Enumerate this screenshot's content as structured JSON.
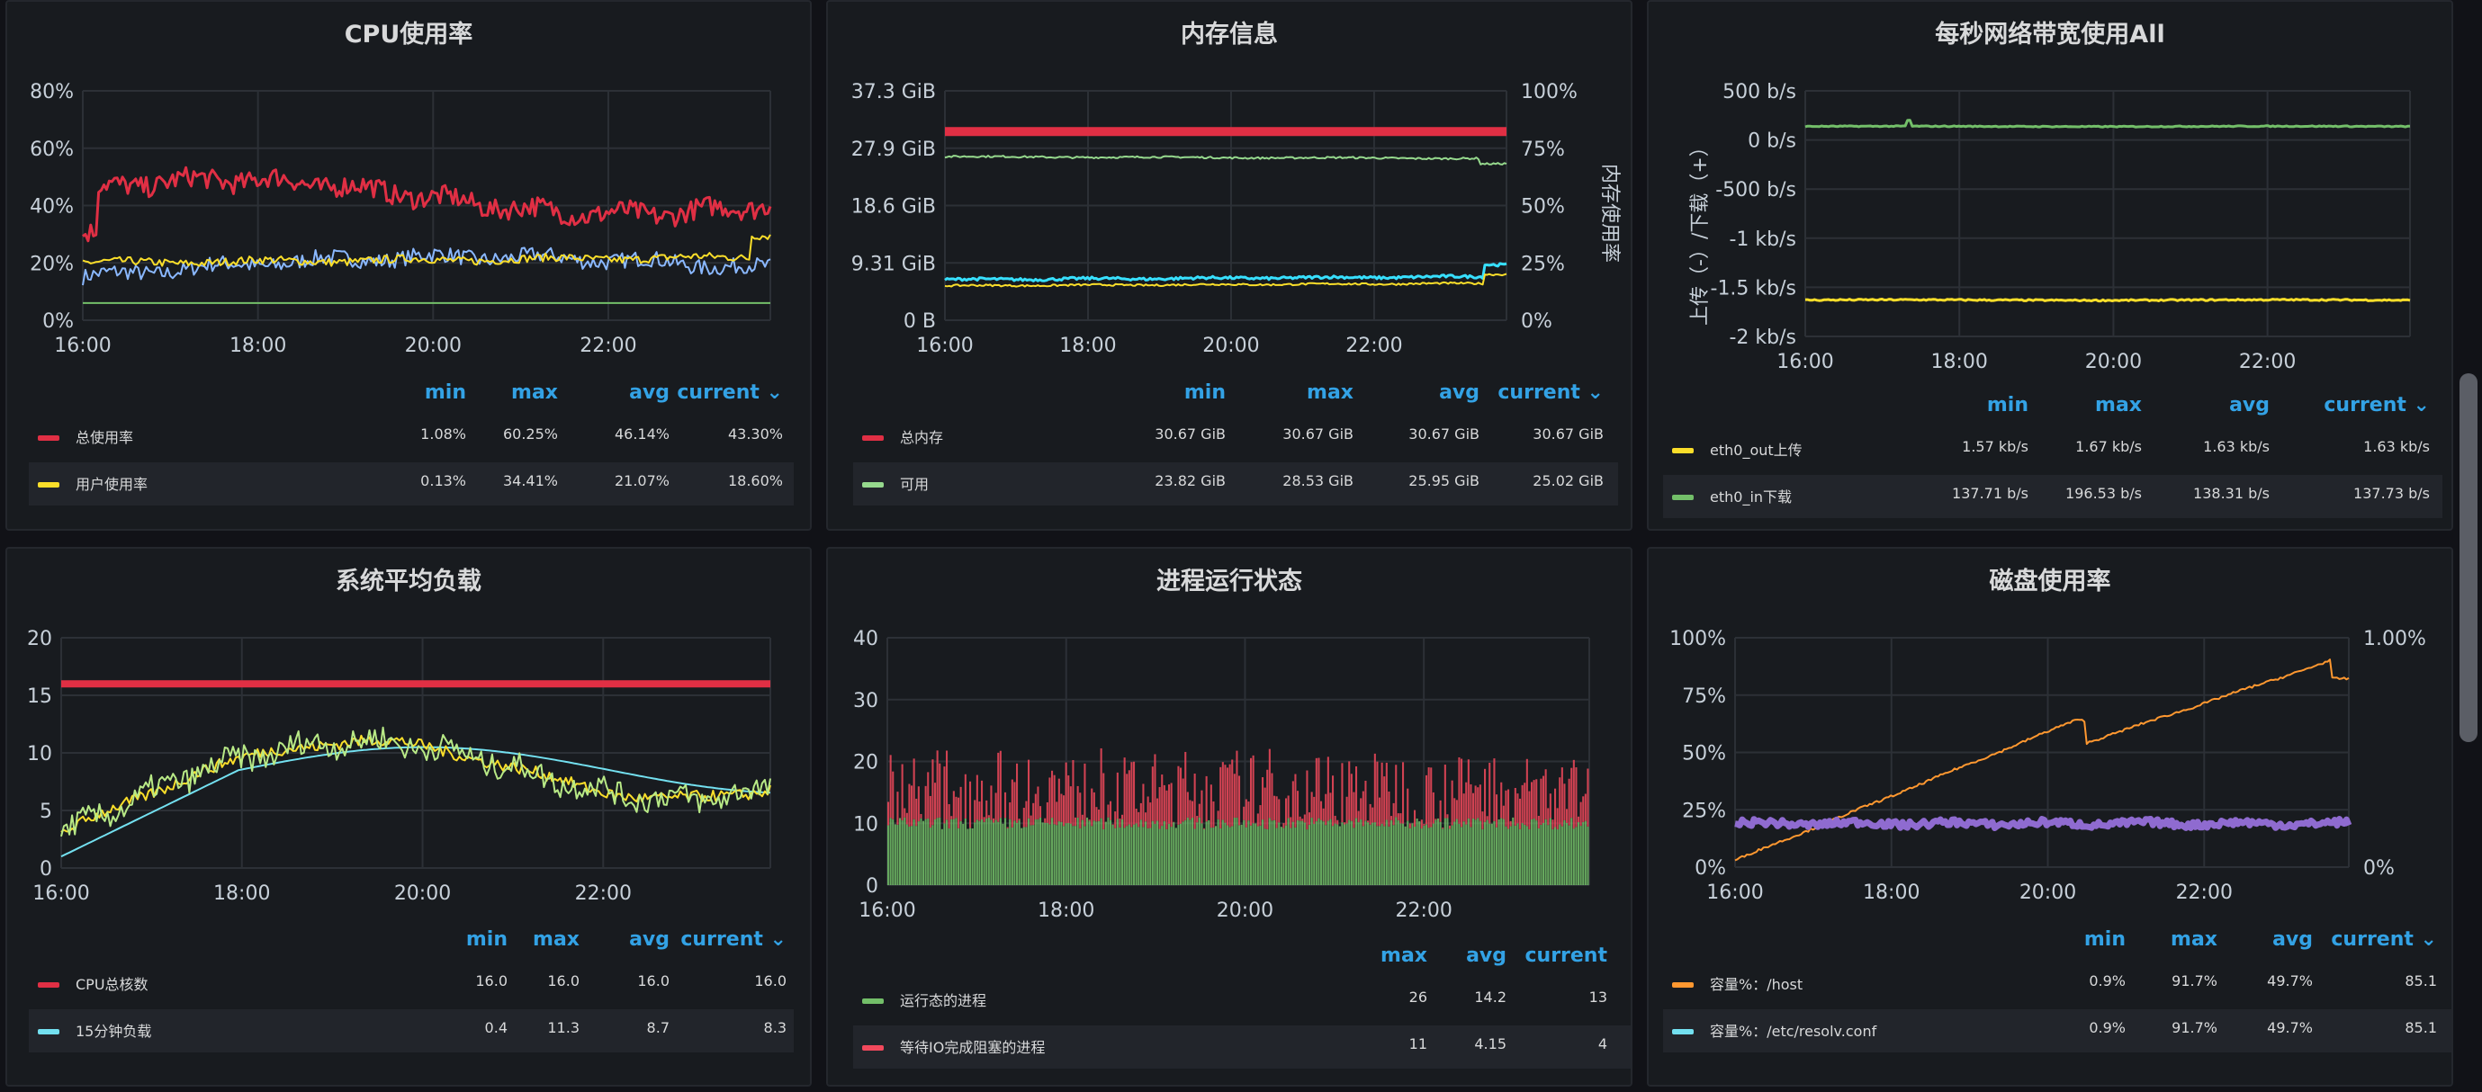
{
  "panels": [
    {
      "id": "cpu",
      "title": "CPU使用率",
      "box": null,
      "chart_data": {
        "type": "line",
        "x_ticks": [
          "16:00",
          "18:00",
          "20:00",
          "22:00"
        ],
        "y_ticks": [
          "0%",
          "20%",
          "40%",
          "60%",
          "80%"
        ],
        "ylim": [
          0,
          80
        ],
        "series": [
          {
            "name": "总使用率",
            "color": "#e02f44",
            "min": "1.08%",
            "max": "60.25%",
            "avg": "46.14%",
            "current": "43.30%"
          },
          {
            "name": "用户使用率",
            "color": "#fade2a",
            "min": "0.13%",
            "max": "34.41%",
            "avg": "21.07%",
            "current": "18.60%"
          },
          {
            "color": "#8ab8ff"
          },
          {
            "color": "#73bf69"
          }
        ]
      },
      "legend_cols": [
        "min",
        "max",
        "avg",
        "current ⌄"
      ]
    },
    {
      "id": "mem",
      "title": "内存信息",
      "chart_data": {
        "type": "line",
        "x_ticks": [
          "16:00",
          "18:00",
          "20:00",
          "22:00"
        ],
        "y_ticks": [
          "0 B",
          "9.31 GiB",
          "18.6 GiB",
          "27.9 GiB",
          "37.3 GiB"
        ],
        "y2_ticks": [
          "0%",
          "25%",
          "50%",
          "75%",
          "100%"
        ],
        "y2label": "内存使用率",
        "series": [
          {
            "name": "总内存",
            "color": "#e02f44",
            "min": "30.67 GiB",
            "max": "30.67 GiB",
            "avg": "30.67 GiB",
            "current": "30.67 GiB"
          },
          {
            "name": "可用",
            "color": "#96d98d",
            "min": "23.82 GiB",
            "max": "28.53 GiB",
            "avg": "25.95 GiB",
            "current": "25.02 GiB"
          },
          {
            "color": "#37e0ff"
          },
          {
            "color": "#fade2a"
          }
        ]
      },
      "legend_cols": [
        "min",
        "max",
        "avg",
        "current ⌄"
      ]
    },
    {
      "id": "net",
      "title": "每秒网络带宽使用All",
      "chart_data": {
        "type": "line",
        "x_ticks": [
          "16:00",
          "18:00",
          "20:00",
          "22:00"
        ],
        "y_ticks": [
          "-2 kb/s",
          "-1.5 kb/s",
          "-1 kb/s",
          "-500 b/s",
          "0 b/s",
          "500 b/s"
        ],
        "ylabel": "上传（-）/下载（+）",
        "series": [
          {
            "name": "eth0_out上传",
            "color": "#fade2a",
            "min": "1.57 kb/s",
            "max": "1.67 kb/s",
            "avg": "1.63 kb/s",
            "current": "1.63 kb/s"
          },
          {
            "name": "eth0_in下载",
            "color": "#73bf69",
            "min": "137.71 b/s",
            "max": "196.53 b/s",
            "avg": "138.31 b/s",
            "current": "137.73 b/s"
          }
        ]
      },
      "legend_cols": [
        "min",
        "max",
        "avg",
        "current ⌄"
      ]
    },
    {
      "id": "load",
      "title": "系统平均负载",
      "chart_data": {
        "type": "line",
        "x_ticks": [
          "16:00",
          "18:00",
          "20:00",
          "22:00"
        ],
        "y_ticks": [
          "0",
          "5",
          "10",
          "15",
          "20"
        ],
        "ylim": [
          0,
          20
        ],
        "series": [
          {
            "name": "CPU总核数",
            "color": "#e02f44",
            "min": "16.0",
            "max": "16.0",
            "avg": "16.0",
            "current": "16.0"
          },
          {
            "name": "15分钟负载",
            "color": "#73e0f0",
            "min": "0.4",
            "max": "11.3",
            "avg": "8.7",
            "current": "8.3"
          },
          {
            "color": "#fade2a"
          },
          {
            "color": "#b8e986"
          }
        ]
      },
      "legend_cols": [
        "min",
        "max",
        "avg",
        "current ⌄"
      ]
    },
    {
      "id": "proc",
      "title": "进程运行状态",
      "chart_data": {
        "type": "bar",
        "x_ticks": [
          "16:00",
          "18:00",
          "20:00",
          "22:00"
        ],
        "y_ticks": [
          "0",
          "10",
          "20",
          "30",
          "40"
        ],
        "ylim": [
          0,
          40
        ],
        "series": [
          {
            "name": "运行态的进程",
            "color": "#73bf69",
            "max": "26",
            "avg": "14.2",
            "current": "13"
          },
          {
            "name": "等待IO完成阻塞的进程",
            "color": "#f2495c",
            "max": "11",
            "avg": "4.15",
            "current": "4"
          }
        ]
      },
      "legend_cols": [
        "max",
        "avg",
        "current"
      ]
    },
    {
      "id": "disk",
      "title": "磁盘使用率",
      "chart_data": {
        "type": "line",
        "x_ticks": [
          "16:00",
          "18:00",
          "20:00",
          "22:00"
        ],
        "y_ticks": [
          "0%",
          "25%",
          "50%",
          "75%",
          "100%"
        ],
        "y2_ticks": [
          "0%",
          "1.00%"
        ],
        "series": [
          {
            "name": "容量%：/host",
            "color": "#ff9830",
            "min": "0.9%",
            "max": "91.7%",
            "avg": "49.7%",
            "current": "85.1"
          },
          {
            "name": "容量%：/etc/resolv.conf",
            "color": "#73e0f0",
            "min": "0.9%",
            "max": "91.7%",
            "avg": "49.7%",
            "current": "85.1"
          },
          {
            "color": "#8f6bd0"
          }
        ]
      },
      "legend_cols": [
        "min",
        "max",
        "avg",
        "current ⌄"
      ]
    }
  ]
}
